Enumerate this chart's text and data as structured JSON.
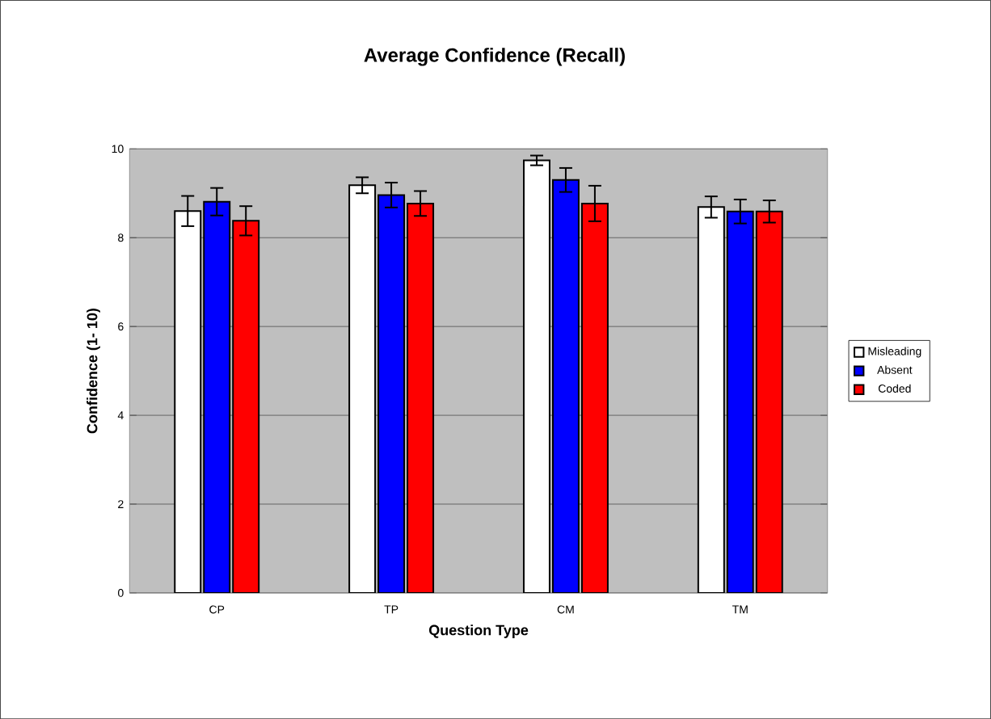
{
  "chart_data": {
    "type": "bar",
    "title": "Average Confidence (Recall)",
    "xlabel": "Question Type",
    "ylabel": "Confidence (1- 10)",
    "categories": [
      "CP",
      "TP",
      "CM",
      "TM"
    ],
    "series": [
      {
        "name": "Misleading",
        "color": "#ffffff",
        "values": [
          8.6,
          9.18,
          9.74,
          8.69
        ],
        "errors": [
          0.34,
          0.18,
          0.11,
          0.24
        ]
      },
      {
        "name": "Absent",
        "color": "#0000ff",
        "values": [
          8.81,
          8.96,
          9.3,
          8.59
        ],
        "errors": [
          0.31,
          0.28,
          0.27,
          0.27
        ]
      },
      {
        "name": "Coded",
        "color": "#ff0000",
        "values": [
          8.38,
          8.77,
          8.77,
          8.59
        ],
        "errors": [
          0.33,
          0.28,
          0.4,
          0.25
        ]
      }
    ],
    "ylim": [
      0,
      10
    ],
    "yticks": [
      0,
      2,
      4,
      6,
      8,
      10
    ],
    "grid": "y",
    "legend": "right"
  }
}
